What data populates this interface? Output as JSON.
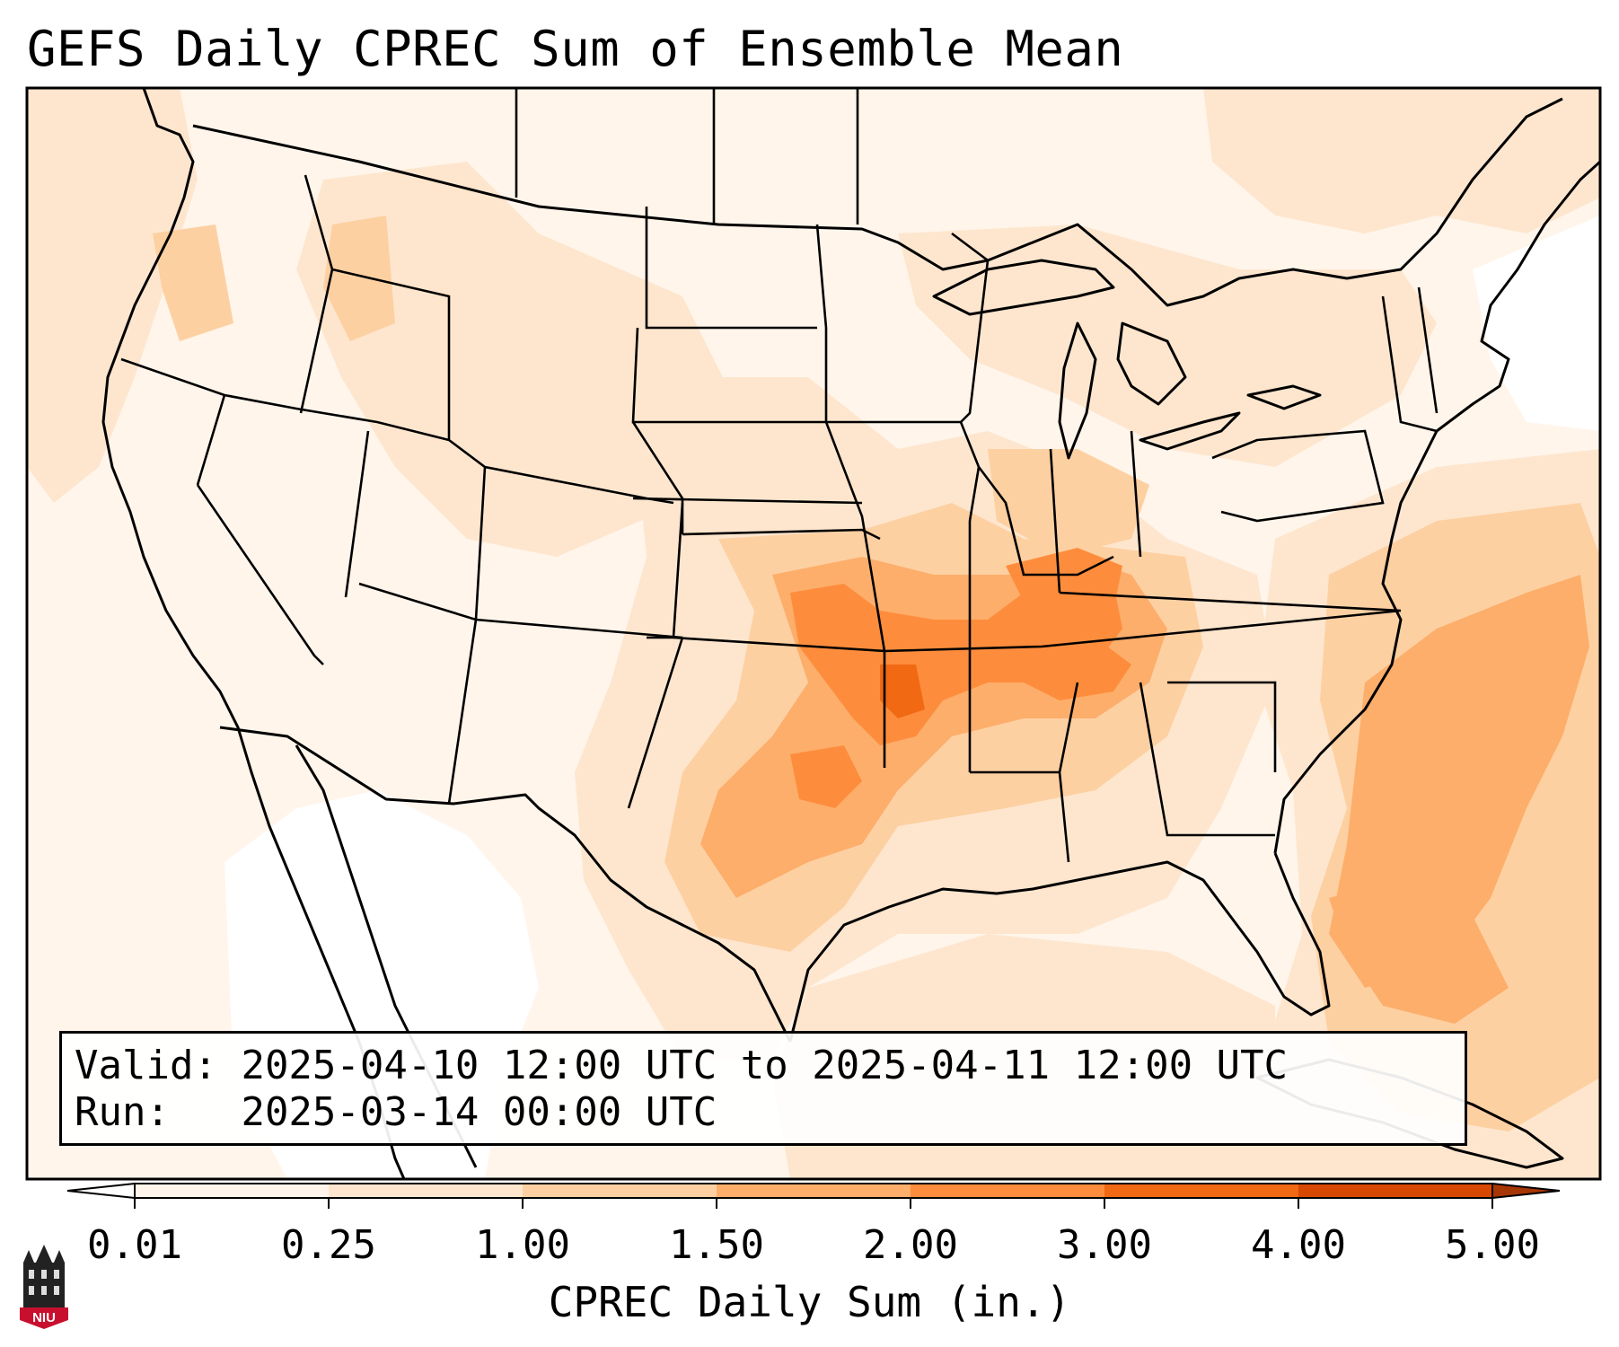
{
  "title": "GEFS Daily CPREC Sum of Ensemble Mean",
  "info": {
    "valid_label": "Valid:",
    "valid_value": "2025-04-10 12:00 UTC to 2025-04-11 12:00 UTC",
    "run_label": "Run:",
    "run_value": "2025-03-14 00:00 UTC"
  },
  "colorbar": {
    "title": "CPREC Daily Sum (in.)",
    "ticks": [
      "0.01",
      "0.25",
      "1.00",
      "1.50",
      "2.00",
      "3.00",
      "4.00",
      "5.00"
    ],
    "colors": [
      "#fff5eb",
      "#fee6ce",
      "#fdd0a2",
      "#fdae6b",
      "#fd8d3c",
      "#f16913",
      "#d94801"
    ],
    "under_color": "#ffffff",
    "over_color": "#a63603"
  },
  "logo": {
    "icon": "niu-logo-icon",
    "text": "NIU",
    "color": "#c8102e"
  },
  "precip_shading": [
    {
      "level": "0.25-1.00",
      "color": "#fee6ce"
    },
    {
      "level": "1.00-1.50",
      "color": "#fdd0a2"
    },
    {
      "level": "1.50-2.00",
      "color": "#fdae6b"
    },
    {
      "level": "2.00-3.00",
      "color": "#fd8d3c"
    },
    {
      "level": "3.00-4.00",
      "color": "#f16913"
    }
  ]
}
